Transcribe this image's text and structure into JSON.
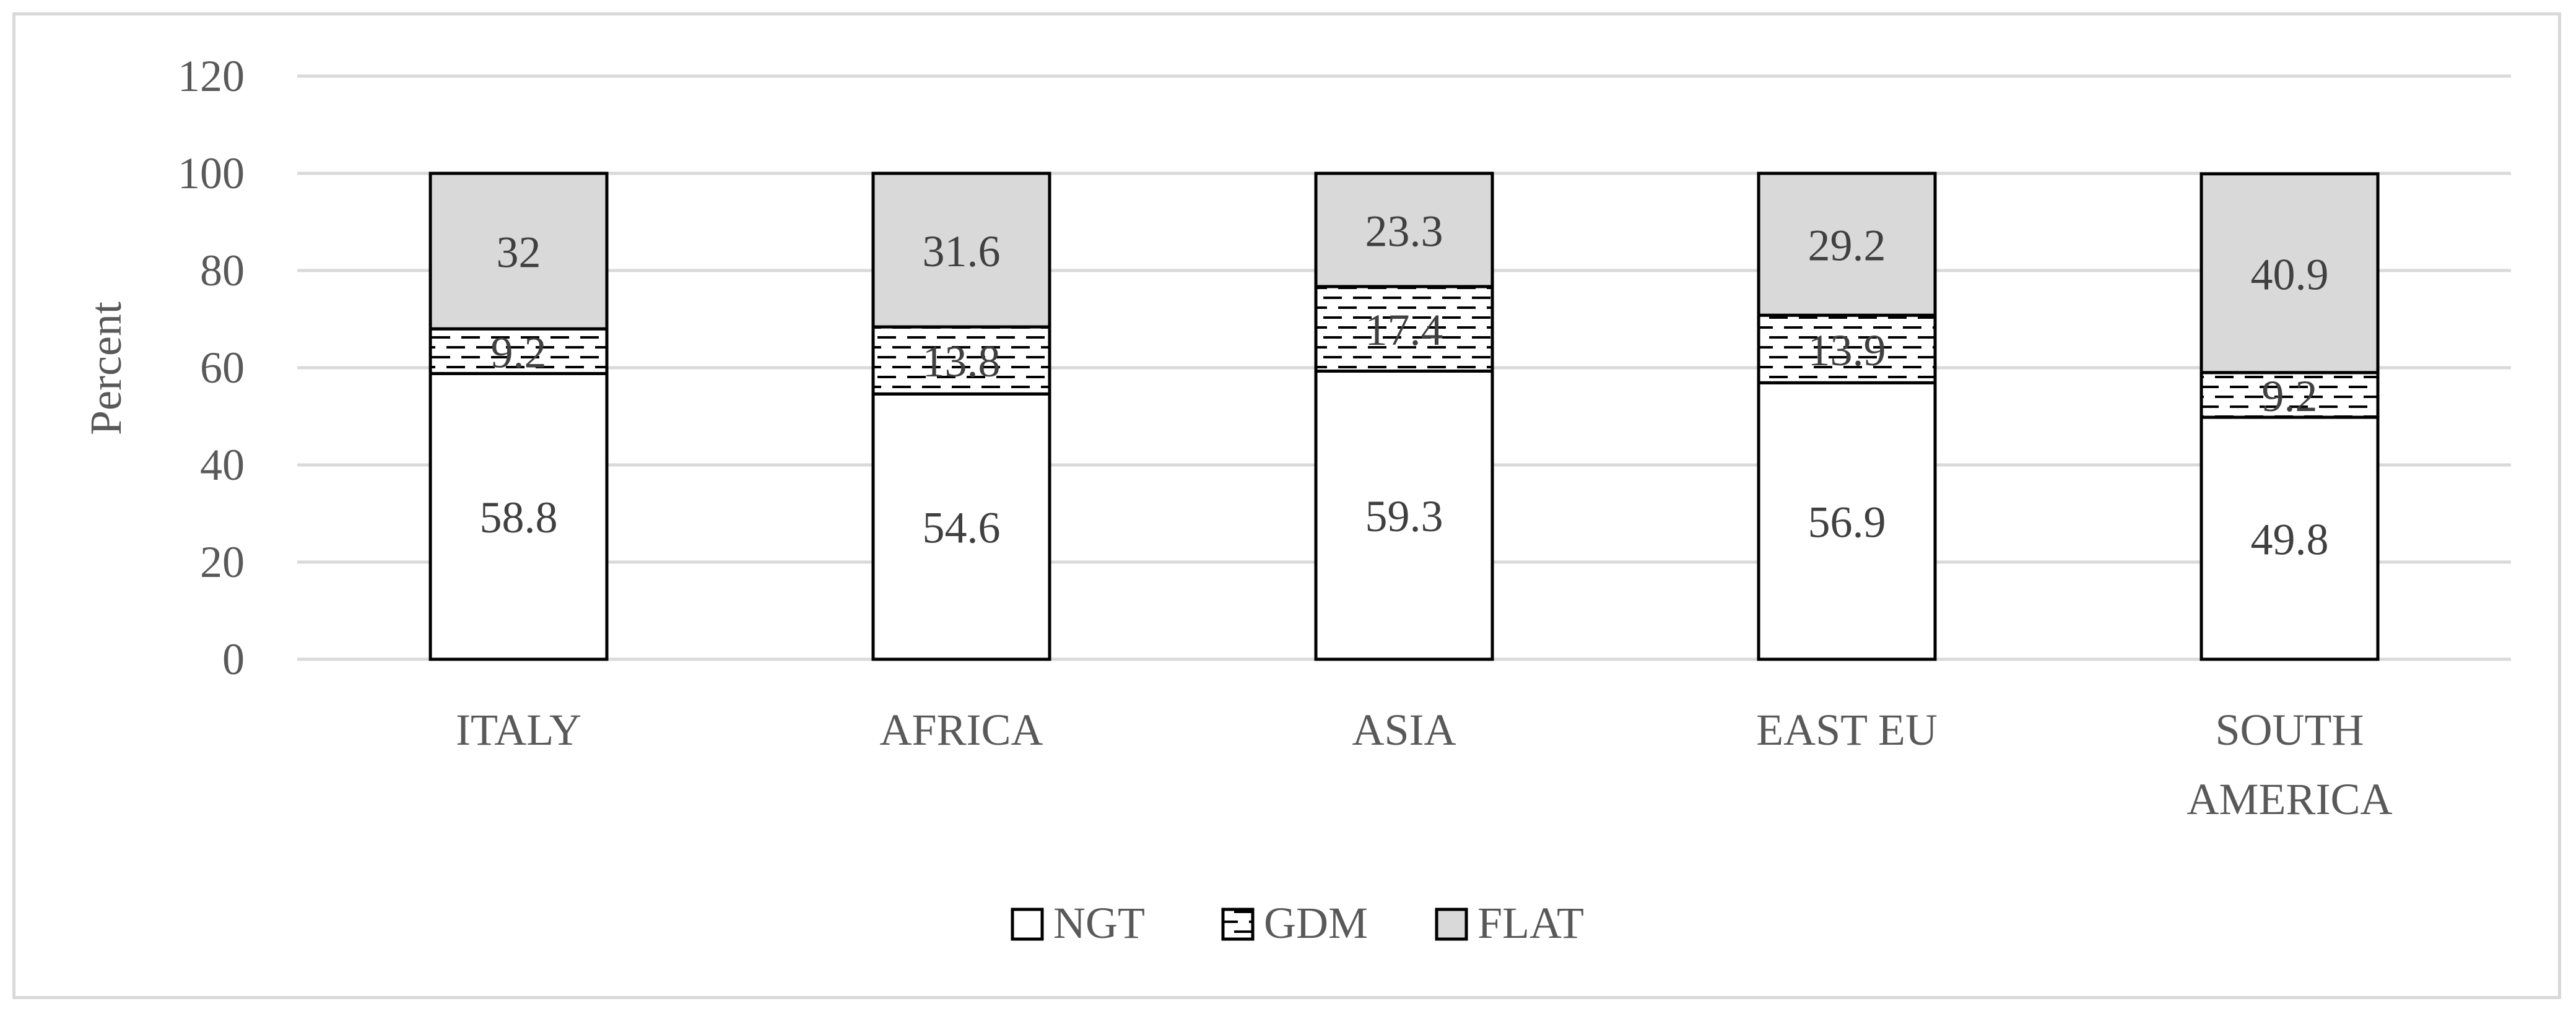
{
  "chart_data": {
    "type": "bar",
    "stacked": true,
    "categories": [
      "ITALY",
      "AFRICA",
      "ASIA",
      "EAST EU",
      "SOUTH AMERICA"
    ],
    "category_label_lines": [
      [
        "ITALY"
      ],
      [
        "AFRICA"
      ],
      [
        "ASIA"
      ],
      [
        "EAST EU"
      ],
      [
        "SOUTH",
        "AMERICA"
      ]
    ],
    "series": [
      {
        "name": "NGT",
        "values": [
          58.8,
          54.6,
          59.3,
          56.9,
          49.8
        ],
        "fill": "#ffffff",
        "pattern": "solid"
      },
      {
        "name": "GDM",
        "values": [
          9.2,
          13.8,
          17.4,
          13.9,
          9.2
        ],
        "fill": "#ffffff",
        "pattern": "dashed-horizontal"
      },
      {
        "name": "FLAT",
        "values": [
          32,
          31.6,
          23.3,
          29.2,
          40.9
        ],
        "fill": "#d9d9d9",
        "pattern": "solid"
      }
    ],
    "title": "",
    "xlabel": "",
    "ylabel": "Percent",
    "ylim": [
      0,
      120
    ],
    "yticks": [
      0,
      20,
      40,
      60,
      80,
      100,
      120
    ],
    "grid": true,
    "legend_position": "bottom",
    "colors": {
      "text": "#595959",
      "grid": "#d9d9d9",
      "bar_outline": "#000000"
    }
  }
}
